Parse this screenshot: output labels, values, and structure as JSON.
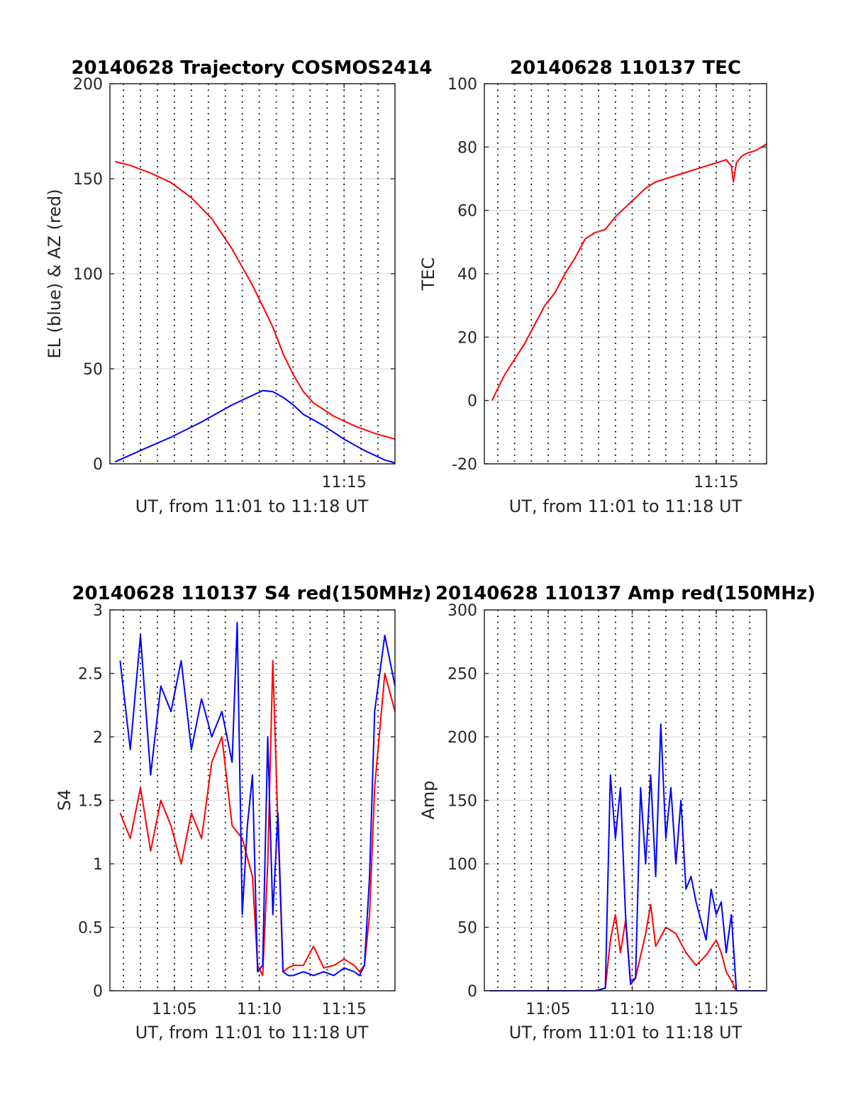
{
  "colors": {
    "red": "#ff0000",
    "blue": "#0000ff"
  },
  "chart_data": [
    {
      "id": "trajectory",
      "type": "line",
      "title": "20140628 Trajectory COSMOS2414",
      "xlabel": "UT, from 11:01 to 11:18 UT",
      "ylabel": "EL (blue) & AZ (red)",
      "xlim": [
        11.02,
        11.3
      ],
      "ylim": [
        0,
        200
      ],
      "yticks": [
        0,
        50,
        100,
        150,
        200
      ],
      "xticks": [
        {
          "value": 11.25,
          "label": "11:15"
        }
      ],
      "grid": "on",
      "series": [
        {
          "color": "red",
          "x": [
            11.025,
            11.04,
            11.06,
            11.08,
            11.1,
            11.12,
            11.14,
            11.16,
            11.17,
            11.18,
            11.19,
            11.2,
            11.21,
            11.22,
            11.24,
            11.26,
            11.28,
            11.3
          ],
          "y": [
            159,
            157,
            153,
            148,
            140,
            129,
            113,
            94,
            83,
            72,
            58,
            47,
            38,
            32,
            25,
            20,
            16,
            13
          ]
        },
        {
          "color": "blue",
          "x": [
            11.025,
            11.05,
            11.08,
            11.11,
            11.14,
            11.16,
            11.17,
            11.18,
            11.19,
            11.2,
            11.21,
            11.23,
            11.25,
            11.27,
            11.29,
            11.3
          ],
          "y": [
            1,
            7,
            14,
            22,
            31,
            36,
            38.5,
            38,
            35,
            31,
            26,
            20,
            13,
            7,
            2,
            0.5
          ]
        }
      ]
    },
    {
      "id": "tec",
      "type": "line",
      "title": "20140628 110137 TEC",
      "xlabel": "UT, from 11:01 to 11:18 UT",
      "ylabel": "TEC",
      "xlim": [
        11.02,
        11.3
      ],
      "ylim": [
        -20,
        100
      ],
      "yticks": [
        -20,
        0,
        20,
        40,
        60,
        80,
        100
      ],
      "xticks": [
        {
          "value": 11.25,
          "label": "11:15"
        }
      ],
      "grid": "on",
      "series": [
        {
          "color": "red",
          "x": [
            11.0275,
            11.04,
            11.05,
            11.06,
            11.07,
            11.08,
            11.09,
            11.1,
            11.11,
            11.12,
            11.13,
            11.14,
            11.15,
            11.16,
            11.17,
            11.18,
            11.19,
            11.2,
            11.21,
            11.22,
            11.23,
            11.24,
            11.25,
            11.26,
            11.265,
            11.267,
            11.27,
            11.275,
            11.28,
            11.29,
            11.3
          ],
          "y": [
            0,
            8,
            13,
            18,
            24,
            30,
            34,
            40,
            45,
            51,
            53,
            54,
            58,
            61,
            64,
            67,
            69,
            70,
            71,
            72,
            73,
            74,
            75,
            76,
            74,
            69,
            75,
            77,
            78,
            79,
            81
          ]
        }
      ]
    },
    {
      "id": "s4",
      "type": "line",
      "title": "20140628 110137 S4 red(150MHz)",
      "xlabel": "UT, from 11:01 to 11:18 UT",
      "ylabel": "S4",
      "xlim": [
        11.02,
        11.3
      ],
      "ylim": [
        0,
        3
      ],
      "yticks": [
        0,
        0.5,
        1,
        1.5,
        2,
        2.5,
        3
      ],
      "xticks": [
        {
          "value": 11.0833,
          "label": "11:05"
        },
        {
          "value": 11.1667,
          "label": "11:10"
        },
        {
          "value": 11.25,
          "label": "11:15"
        }
      ],
      "grid": "on",
      "series": [
        {
          "color": "red",
          "x": [
            11.03,
            11.04,
            11.05,
            11.06,
            11.07,
            11.08,
            11.09,
            11.1,
            11.11,
            11.12,
            11.13,
            11.14,
            11.15,
            11.16,
            11.165,
            11.17,
            11.175,
            11.18,
            11.185,
            11.19,
            11.195,
            11.2,
            11.21,
            11.22,
            11.23,
            11.24,
            11.25,
            11.26,
            11.265,
            11.27,
            11.275,
            11.28,
            11.29,
            11.3
          ],
          "y": [
            1.4,
            1.2,
            1.6,
            1.1,
            1.5,
            1.3,
            1.0,
            1.4,
            1.2,
            1.8,
            2.0,
            1.3,
            1.2,
            0.9,
            0.2,
            0.12,
            1.0,
            2.6,
            1.3,
            0.15,
            0.18,
            0.2,
            0.2,
            0.35,
            0.18,
            0.2,
            0.25,
            0.2,
            0.15,
            0.2,
            0.6,
            1.6,
            2.5,
            2.2
          ]
        },
        {
          "color": "blue",
          "x": [
            11.03,
            11.04,
            11.05,
            11.06,
            11.07,
            11.08,
            11.09,
            11.1,
            11.11,
            11.12,
            11.13,
            11.14,
            11.145,
            11.15,
            11.155,
            11.16,
            11.165,
            11.17,
            11.175,
            11.18,
            11.185,
            11.19,
            11.195,
            11.2,
            11.21,
            11.22,
            11.23,
            11.24,
            11.25,
            11.26,
            11.265,
            11.27,
            11.275,
            11.28,
            11.29,
            11.3
          ],
          "y": [
            2.6,
            1.9,
            2.8,
            1.7,
            2.4,
            2.2,
            2.6,
            1.9,
            2.3,
            2.0,
            2.2,
            1.8,
            2.9,
            0.6,
            1.3,
            1.7,
            0.15,
            0.2,
            2.0,
            0.6,
            1.4,
            0.15,
            0.12,
            0.12,
            0.15,
            0.12,
            0.15,
            0.12,
            0.18,
            0.15,
            0.12,
            0.2,
            0.9,
            2.2,
            2.8,
            2.4
          ]
        }
      ]
    },
    {
      "id": "amp",
      "type": "line",
      "title": "20140628 110137 Amp red(150MHz)",
      "xlabel": "UT, from 11:01 to 11:18 UT",
      "ylabel": "Amp",
      "xlim": [
        11.02,
        11.3
      ],
      "ylim": [
        0,
        300
      ],
      "yticks": [
        0,
        50,
        100,
        150,
        200,
        250,
        300
      ],
      "xticks": [
        {
          "value": 11.0833,
          "label": "11:05"
        },
        {
          "value": 11.1667,
          "label": "11:10"
        },
        {
          "value": 11.25,
          "label": "11:15"
        }
      ],
      "grid": "on",
      "series": [
        {
          "color": "red",
          "x": [
            11.025,
            11.1,
            11.13,
            11.14,
            11.145,
            11.15,
            11.155,
            11.16,
            11.165,
            11.17,
            11.18,
            11.185,
            11.19,
            11.2,
            11.21,
            11.22,
            11.225,
            11.23,
            11.24,
            11.25,
            11.255,
            11.26,
            11.265,
            11.27,
            11.28,
            11.3
          ],
          "y": [
            0,
            0,
            0,
            2,
            40,
            60,
            30,
            55,
            8,
            10,
            45,
            68,
            35,
            50,
            45,
            30,
            25,
            20,
            28,
            40,
            30,
            15,
            8,
            0,
            0,
            0
          ]
        },
        {
          "color": "blue",
          "x": [
            11.025,
            11.1,
            11.13,
            11.14,
            11.145,
            11.15,
            11.155,
            11.16,
            11.165,
            11.17,
            11.175,
            11.18,
            11.185,
            11.19,
            11.195,
            11.2,
            11.205,
            11.21,
            11.215,
            11.22,
            11.225,
            11.23,
            11.24,
            11.245,
            11.25,
            11.255,
            11.26,
            11.265,
            11.27,
            11.28,
            11.3
          ],
          "y": [
            0,
            0,
            0,
            2,
            170,
            120,
            160,
            60,
            5,
            10,
            160,
            100,
            170,
            90,
            210,
            120,
            160,
            100,
            150,
            80,
            90,
            70,
            40,
            80,
            60,
            70,
            30,
            60,
            0,
            0,
            0
          ]
        }
      ]
    }
  ]
}
